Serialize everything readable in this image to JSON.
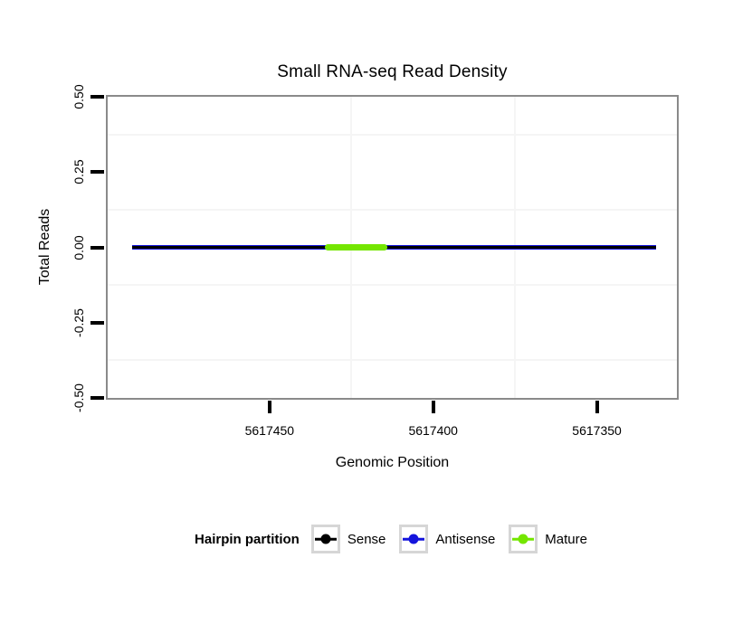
{
  "title": "Small RNA-seq Read Density",
  "chart_data": {
    "type": "line",
    "title": "Small RNA-seq Read Density",
    "xlabel": "Genomic Position",
    "ylabel": "Total Reads",
    "x_axis_reversed": true,
    "xlim": [
      5617500,
      5617325
    ],
    "ylim": [
      -0.5,
      0.5
    ],
    "x_tick_values": [
      5617450,
      5617400,
      5617350
    ],
    "x_tick_labels": [
      "5617450",
      "5617400",
      "5617350"
    ],
    "y_tick_values": [
      0.5,
      0.25,
      0,
      -0.25,
      -0.5
    ],
    "y_tick_labels": [
      "0.50",
      "0.25",
      "0.00",
      "-0.25",
      "-0.50"
    ],
    "x_minor_gridlines": [
      5617425,
      5617375
    ],
    "y_minor_gridlines": [
      0.375,
      0.125,
      -0.125,
      -0.375
    ],
    "grid": "minor gridlines only, very light gray on white panel",
    "legend_position": "bottom",
    "series": [
      {
        "name": "Antisense",
        "color": "#1414dc",
        "y": 0,
        "x_start": 5617492,
        "x_end": 5617332,
        "thickness_px": 5,
        "rounded": false
      },
      {
        "name": "Sense",
        "color": "#000000",
        "y": 0,
        "x_start": 5617492,
        "x_end": 5617332,
        "thickness_px": 2.6,
        "rounded": false
      },
      {
        "name": "Mature",
        "color": "#74e600",
        "y": 0,
        "x_start": 5617433,
        "x_end": 5617414,
        "thickness_px": 6.5,
        "rounded": true
      }
    ]
  },
  "legend": {
    "title": "Hairpin partition",
    "items": [
      {
        "label": "Sense",
        "color": "#000000"
      },
      {
        "label": "Antisense",
        "color": "#1414dc"
      },
      {
        "label": "Mature",
        "color": "#74e600"
      }
    ]
  },
  "colors": {
    "background": "#ffffff",
    "panel_border": "#8a8a8a",
    "minor_grid": "#f5f5f5",
    "tick_mark": "#000000",
    "legend_key_border": "#d6d6d6"
  }
}
